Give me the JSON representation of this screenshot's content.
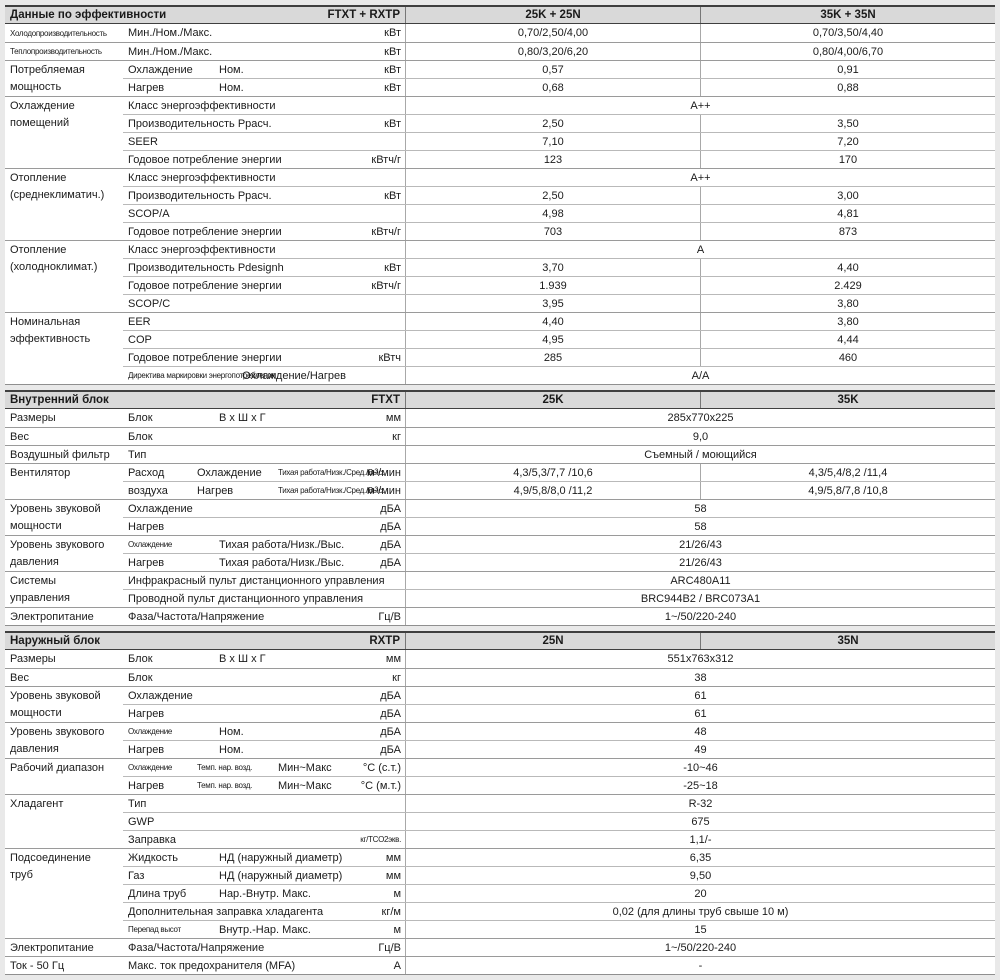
{
  "colors": {
    "page_bg": "#e9e9e9",
    "header_bg": "#d9d9d9",
    "header_border": "#3f3f3f",
    "row_line": "#b9b9b9"
  },
  "sections": [
    {
      "id": "performance-data",
      "header": {
        "title": "Данные по эффективности",
        "model": "FTXT + RXTP",
        "col1": "25K + 25N",
        "col2": "35K + 35N"
      },
      "rows": [
        {
          "g": 1,
          "c1": "Холодопроизводительность",
          "c1s": 1,
          "cells": [
            {
              "t": "Мин./Ном./Макс."
            }
          ],
          "unit": "кВт",
          "v": [
            "0,70/2,50/4,00",
            "0,70/3,50/4,40"
          ]
        },
        {
          "g": 1,
          "c1": "Теплопроизводительность",
          "c1s": 1,
          "cells": [
            {
              "t": "Мин./Ном./Макс."
            }
          ],
          "unit": "кВт",
          "v": [
            "0,80/3,20/6,20",
            "0,80/4,00/6,70"
          ]
        },
        {
          "g": 1,
          "c1": "Потребляемая",
          "cells": [
            {
              "t": "Охлаждение"
            },
            {
              "t": "Ном."
            }
          ],
          "unit": "кВт",
          "v": [
            "0,57",
            "0,91"
          ]
        },
        {
          "c1": "мощность",
          "cells": [
            {
              "t": "Нагрев"
            },
            {
              "t": "Ном."
            }
          ],
          "unit": "кВт",
          "v": [
            "0,68",
            "0,88"
          ]
        },
        {
          "g": 1,
          "c1": "Охлаждение",
          "cells": [
            {
              "t": "Класс энергоэффективности"
            }
          ],
          "sp": "A++"
        },
        {
          "c1": "помещений",
          "cells": [
            {
              "t": "Производительность Pрасч."
            }
          ],
          "unit": "кВт",
          "v": [
            "2,50",
            "3,50"
          ]
        },
        {
          "cells": [
            {
              "t": "SEER"
            }
          ],
          "v": [
            "7,10",
            "7,20"
          ]
        },
        {
          "cells": [
            {
              "t": "Годовое потребление энергии"
            }
          ],
          "unit": "кВтч/г",
          "v": [
            "123",
            "170"
          ]
        },
        {
          "g": 1,
          "c1": "Отопление",
          "cells": [
            {
              "t": "Класс энергоэффективности"
            }
          ],
          "sp": "A++"
        },
        {
          "c1": "(среднеклиматич.)",
          "cells": [
            {
              "t": "Производительность Pрасч."
            }
          ],
          "unit": "кВт",
          "v": [
            "2,50",
            "3,00"
          ]
        },
        {
          "cells": [
            {
              "t": "SCOP/A"
            }
          ],
          "v": [
            "4,98",
            "4,81"
          ]
        },
        {
          "cells": [
            {
              "t": "Годовое потребление энергии"
            }
          ],
          "unit": "кВтч/г",
          "v": [
            "703",
            "873"
          ]
        },
        {
          "g": 1,
          "c1": "Отопление",
          "cells": [
            {
              "t": "Класс энергоэффективности"
            }
          ],
          "sp": "A"
        },
        {
          "c1": "(холодноклимат.)",
          "cells": [
            {
              "t": "Производительность Pdesignh"
            }
          ],
          "unit": "кВт",
          "v": [
            "3,70",
            "4,40"
          ]
        },
        {
          "cells": [
            {
              "t": "Годовое потребление энергии"
            }
          ],
          "unit": "кВтч/г",
          "v": [
            "1.939",
            "2.429"
          ]
        },
        {
          "cells": [
            {
              "t": "SCOP/C"
            }
          ],
          "v": [
            "3,95",
            "3,80"
          ]
        },
        {
          "g": 1,
          "c1": "Номинальная",
          "cells": [
            {
              "t": "EER"
            }
          ],
          "v": [
            "4,40",
            "3,80"
          ]
        },
        {
          "c1": "эффективность",
          "cells": [
            {
              "t": "COP"
            }
          ],
          "v": [
            "4,95",
            "4,44"
          ]
        },
        {
          "cells": [
            {
              "t": "Годовое потребление энергии"
            }
          ],
          "unit": "кВтч",
          "v": [
            "285",
            "460"
          ]
        },
        {
          "cells": [
            {
              "t": "Директива маркировки энергопотребления",
              "s": 1
            },
            {
              "t": "Охлаждение/Нагрев"
            }
          ],
          "sp": "A/A"
        }
      ]
    },
    {
      "id": "indoor-unit",
      "header": {
        "title": "Внутренний блок",
        "model": "FTXT",
        "col1": "25K",
        "col2": "35K"
      },
      "rows": [
        {
          "g": 1,
          "c1": "Размеры",
          "cells": [
            {
              "t": "Блок"
            },
            {
              "t": "В x Ш x Г"
            }
          ],
          "unit": "мм",
          "sp": "285x770x225"
        },
        {
          "g": 1,
          "c1": "Вес",
          "cells": [
            {
              "t": "Блок"
            }
          ],
          "unit": "кг",
          "sp": "9,0"
        },
        {
          "g": 1,
          "c1": "Воздушный фильтр",
          "cells": [
            {
              "t": "Тип"
            }
          ],
          "sp": "Съемный / моющийся"
        },
        {
          "g": 1,
          "c1": "Вентилятор",
          "cells": [
            {
              "t": "Расход"
            },
            {
              "t": "Охлаждение"
            },
            {
              "t": "Тихая работа/Низк./Сред./Выс.",
              "s": 1
            }
          ],
          "unit": "м³/мин",
          "v": [
            "4,3/5,3/7,7 /10,6",
            "4,3/5,4/8,2 /11,4"
          ]
        },
        {
          "cells": [
            {
              "t": "воздуха"
            },
            {
              "t": "Нагрев"
            },
            {
              "t": "Тихая работа/Низк./Сред./Выс.",
              "s": 1
            }
          ],
          "unit": "м³/мин",
          "v": [
            "4,9/5,8/8,0 /11,2",
            "4,9/5,8/7,8 /10,8"
          ]
        },
        {
          "g": 1,
          "c1": "Уровень звуковой",
          "cells": [
            {
              "t": "Охлаждение"
            }
          ],
          "unit": "дБА",
          "sp": "58"
        },
        {
          "c1": "мощности",
          "cells": [
            {
              "t": "Нагрев"
            }
          ],
          "unit": "дБА",
          "sp": "58"
        },
        {
          "g": 1,
          "c1": "Уровень звукового",
          "cells": [
            {
              "t": "Охлаждение",
              "s": 1
            },
            {
              "t": "Тихая работа/Низк./Выс."
            }
          ],
          "unit": "дБА",
          "sp": "21/26/43"
        },
        {
          "c1": "давления",
          "cells": [
            {
              "t": "Нагрев"
            },
            {
              "t": "Тихая работа/Низк./Выс."
            }
          ],
          "unit": "дБА",
          "sp": "21/26/43"
        },
        {
          "g": 1,
          "c1": "Системы",
          "cells": [
            {
              "t": "Инфракрасный пульт дистанционного управления"
            }
          ],
          "sp": "ARC480A11"
        },
        {
          "c1": "управления",
          "cells": [
            {
              "t": "Проводной пульт дистанционного управления"
            }
          ],
          "sp": "BRC944B2 / BRC073A1"
        },
        {
          "g": 1,
          "c1": "Электропитание",
          "cells": [
            {
              "t": "Фаза/Частота/Напряжение"
            }
          ],
          "unit": "Гц/В",
          "sp": "1~/50/220-240"
        }
      ]
    },
    {
      "id": "outdoor-unit",
      "header": {
        "title": "Наружный блок",
        "model": "RXTP",
        "col1": "25N",
        "col2": "35N"
      },
      "rows": [
        {
          "g": 1,
          "c1": "Размеры",
          "cells": [
            {
              "t": "Блок"
            },
            {
              "t": "В x Ш x Г"
            }
          ],
          "unit": "мм",
          "sp": "551x763x312"
        },
        {
          "g": 1,
          "c1": "Вес",
          "cells": [
            {
              "t": "Блок"
            }
          ],
          "unit": "кг",
          "sp": "38"
        },
        {
          "g": 1,
          "c1": "Уровень звуковой",
          "cells": [
            {
              "t": "Охлаждение"
            }
          ],
          "unit": "дБА",
          "sp": "61"
        },
        {
          "c1": "мощности",
          "cells": [
            {
              "t": "Нагрев"
            }
          ],
          "unit": "дБА",
          "sp": "61"
        },
        {
          "g": 1,
          "c1": "Уровень звукового",
          "cells": [
            {
              "t": "Охлаждение",
              "s": 1
            },
            {
              "t": "Ном."
            }
          ],
          "unit": "дБА",
          "sp": "48"
        },
        {
          "c1": "давления",
          "cells": [
            {
              "t": "Нагрев"
            },
            {
              "t": "Ном."
            }
          ],
          "unit": "дБА",
          "sp": "49"
        },
        {
          "g": 1,
          "c1": "Рабочий диапазон",
          "cells": [
            {
              "t": "Охлаждение",
              "s": 1
            },
            {
              "t": "Темп. нар. возд.",
              "s": 1
            },
            {
              "t": "Мин~Макс"
            }
          ],
          "unit": "°C (с.т.)",
          "sp": "-10~46"
        },
        {
          "cells": [
            {
              "t": "Нагрев"
            },
            {
              "t": "Темп. нар. возд.",
              "s": 1
            },
            {
              "t": "Мин~Макс"
            }
          ],
          "unit": "°C (м.т.)",
          "sp": "-25~18"
        },
        {
          "g": 1,
          "c1": "Хладагент",
          "cells": [
            {
              "t": "Тип"
            }
          ],
          "sp": "R-32"
        },
        {
          "cells": [
            {
              "t": "GWP"
            }
          ],
          "sp": "675"
        },
        {
          "cells": [
            {
              "t": "Заправка"
            }
          ],
          "unit": "кг/ТCO2экв.",
          "us": 1,
          "sp": "1,1/-"
        },
        {
          "g": 1,
          "c1": "Подсоединение",
          "cells": [
            {
              "t": "Жидкость"
            },
            {
              "t": "НД (наружный диаметр)"
            }
          ],
          "unit": "мм",
          "sp": "6,35"
        },
        {
          "c1": "труб",
          "cells": [
            {
              "t": "Газ"
            },
            {
              "t": "НД (наружный диаметр)"
            }
          ],
          "unit": "мм",
          "sp": "9,50"
        },
        {
          "cells": [
            {
              "t": "Длина труб"
            },
            {
              "t": "Нар.-Внутр. Макс."
            }
          ],
          "unit": "м",
          "sp": "20"
        },
        {
          "cells": [
            {
              "t": "Дополнительная заправка хладагента"
            }
          ],
          "unit": "кг/м",
          "sp": "0,02 (для длины труб свыше 10 м)"
        },
        {
          "cells": [
            {
              "t": "Перепад высот",
              "s": 1
            },
            {
              "t": "Внутр.-Нар. Макс."
            }
          ],
          "unit": "м",
          "sp": "15"
        },
        {
          "g": 1,
          "c1": "Электропитание",
          "cells": [
            {
              "t": "Фаза/Частота/Напряжение"
            }
          ],
          "unit": "Гц/В",
          "sp": "1~/50/220-240"
        },
        {
          "g": 1,
          "c1": "Ток - 50 Гц",
          "cells": [
            {
              "t": "Макс. ток предохранителя (MFA)"
            }
          ],
          "unit": "А",
          "sp": "-"
        }
      ]
    }
  ]
}
